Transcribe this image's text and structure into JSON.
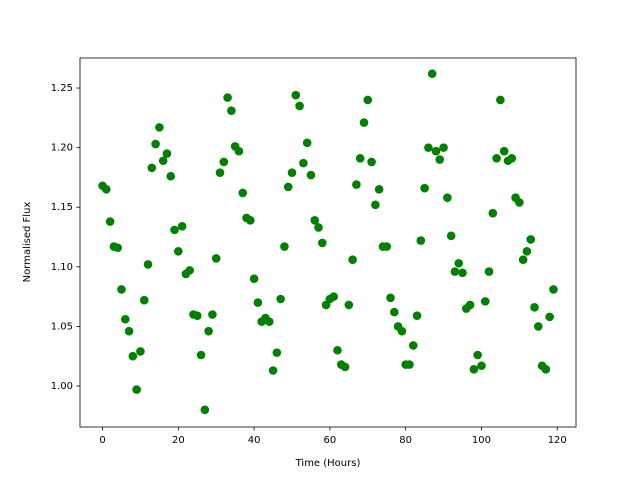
{
  "chart_data": {
    "type": "scatter",
    "xlabel": "Time (Hours)",
    "ylabel": "Normalised Flux",
    "series": [
      {
        "color": "#008000",
        "x": [
          0,
          1,
          2,
          3,
          4,
          5,
          6,
          7,
          8,
          9,
          10,
          11,
          12,
          13,
          14,
          15,
          16,
          17,
          18,
          19,
          20,
          21,
          22,
          23,
          24,
          25,
          26,
          27,
          28,
          29,
          30,
          31,
          32,
          33,
          34,
          35,
          36,
          37,
          38,
          39,
          40,
          41,
          42,
          43,
          44,
          45,
          46,
          47,
          48,
          49,
          50,
          51,
          52,
          53,
          54,
          55,
          56,
          57,
          58,
          59,
          60,
          61,
          62,
          63,
          64,
          65,
          66,
          67,
          68,
          69,
          70,
          71,
          72,
          73,
          74,
          75,
          76,
          77,
          78,
          79,
          80,
          81,
          82,
          83,
          84,
          85,
          86,
          87,
          88,
          89,
          90,
          91,
          92,
          93,
          94,
          95,
          96,
          97,
          98,
          99,
          100,
          101,
          102,
          103,
          104,
          105,
          106,
          107,
          108,
          109,
          110,
          111,
          112,
          113,
          114,
          115,
          116,
          117,
          118,
          119
        ],
        "values": [
          1.168,
          1.165,
          1.138,
          1.117,
          1.116,
          1.081,
          1.056,
          1.046,
          1.025,
          0.997,
          1.029,
          1.072,
          1.102,
          1.183,
          1.203,
          1.217,
          1.189,
          1.195,
          1.176,
          1.131,
          1.113,
          1.134,
          1.094,
          1.097,
          1.06,
          1.059,
          1.026,
          0.98,
          1.046,
          1.06,
          1.107,
          1.179,
          1.188,
          1.242,
          1.231,
          1.201,
          1.197,
          1.162,
          1.141,
          1.139,
          1.09,
          1.07,
          1.054,
          1.057,
          1.054,
          1.013,
          1.028,
          1.073,
          1.117,
          1.167,
          1.179,
          1.244,
          1.235,
          1.187,
          1.204,
          1.177,
          1.139,
          1.133,
          1.12,
          1.068,
          1.073,
          1.075,
          1.03,
          1.018,
          1.016,
          1.068,
          1.106,
          1.169,
          1.191,
          1.221,
          1.24,
          1.188,
          1.152,
          1.165,
          1.117,
          1.117,
          1.074,
          1.062,
          1.05,
          1.046,
          1.018,
          1.018,
          1.034,
          1.059,
          1.122,
          1.166,
          1.2,
          1.262,
          1.197,
          1.19,
          1.2,
          1.158,
          1.126,
          1.096,
          1.103,
          1.095,
          1.065,
          1.068,
          1.014,
          1.026,
          1.017,
          1.071,
          1.096,
          1.145,
          1.191,
          1.24,
          1.197,
          1.189,
          1.191,
          1.158,
          1.154,
          1.106,
          1.113,
          1.123,
          1.066,
          1.05,
          1.017,
          1.014,
          1.058,
          1.081
        ]
      }
    ],
    "xlim": [
      -5.95,
      124.95
    ],
    "xticks": [
      0,
      20,
      40,
      60,
      80,
      100,
      120
    ],
    "ylim": [
      0.9656,
      1.2752
    ],
    "yticks": [
      {
        "value": 1,
        "label": "1.00"
      },
      1.05,
      {
        "value": 1.1,
        "label": "1.10"
      },
      1.15,
      {
        "value": 1.2,
        "label": "1.20"
      },
      1.25
    ]
  }
}
